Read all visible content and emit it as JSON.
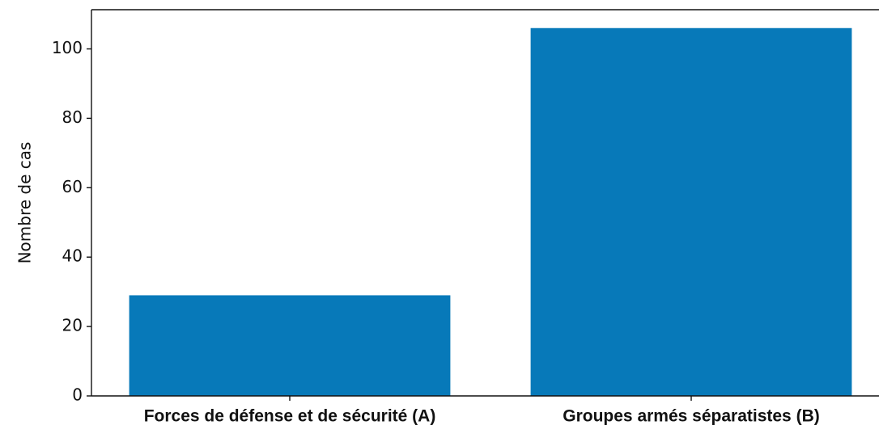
{
  "chart_data": {
    "type": "bar",
    "ylabel": "Nombre de cas",
    "categories": [
      "Forces de défense et de sécurité (A)",
      "Groupes armés séparatistes (B)"
    ],
    "values": [
      29,
      106
    ],
    "color": "#0779b9",
    "ylim": [
      0,
      111.3
    ],
    "yticks": [
      0,
      20,
      40,
      60,
      80,
      100
    ],
    "grid": false
  }
}
